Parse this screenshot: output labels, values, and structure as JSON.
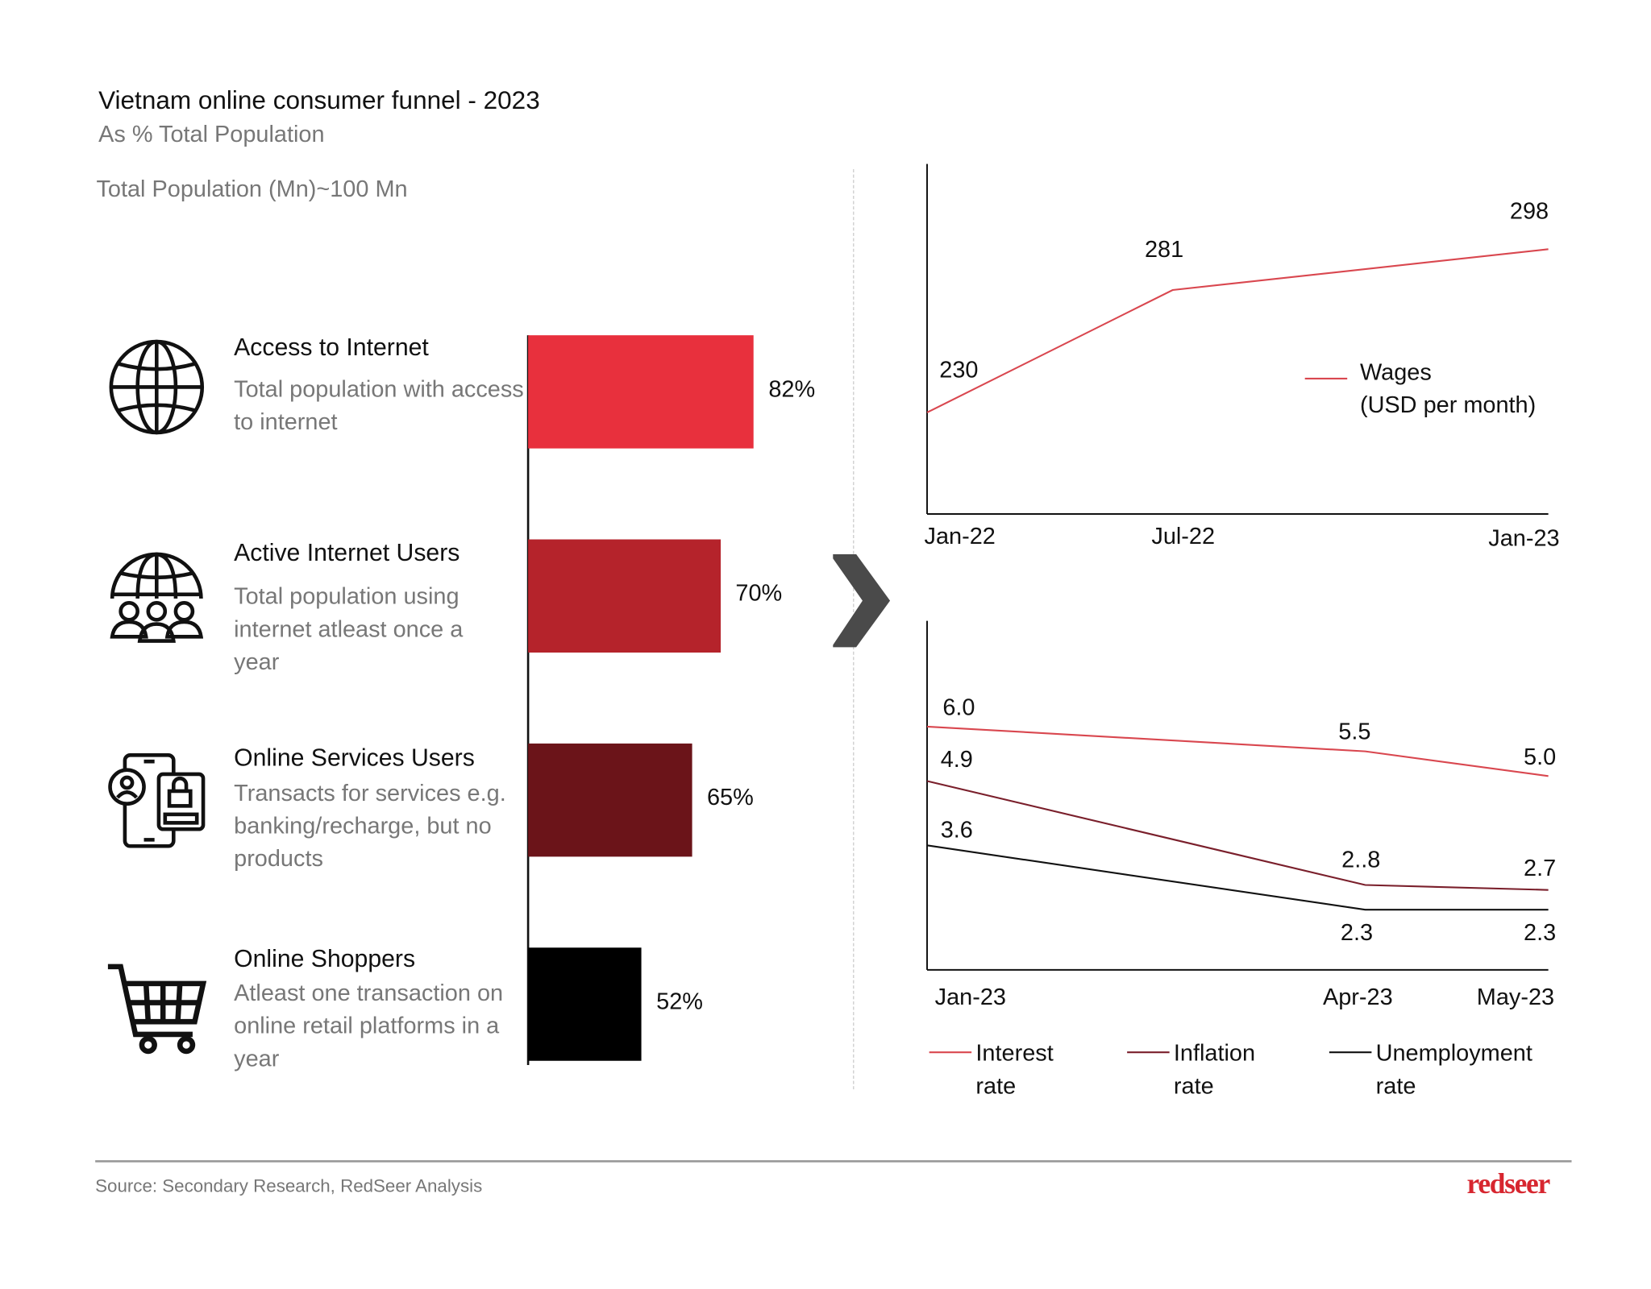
{
  "header": {
    "title": "Vietnam online consumer funnel - 2023",
    "subtitle": "As % Total Population",
    "population_note": "Total Population (Mn)~100 Mn"
  },
  "funnel": [
    {
      "title": "Access to Internet",
      "desc": "Total population with access to internet",
      "value": 82,
      "label": "82%",
      "color": "#e8303d",
      "icon": "globe-icon"
    },
    {
      "title": "Active Internet Users",
      "desc": "Total population using internet atleast once a year",
      "value": 70,
      "label": "70%",
      "color": "#b5232b",
      "icon": "globe-people-icon"
    },
    {
      "title": "Online Services Users",
      "desc": "Transacts for services e.g. banking/recharge, but no products",
      "value": 65,
      "label": "65%",
      "color": "#6b1419",
      "icon": "phone-lock-icon"
    },
    {
      "title": "Online Shoppers",
      "desc": "Atleast one transaction on online retail platforms in a year",
      "value": 52,
      "label": "52%",
      "color": "#000000",
      "icon": "shopping-cart-icon"
    }
  ],
  "chart_data": [
    {
      "type": "bar",
      "orientation": "horizontal",
      "categories": [
        "Access to Internet",
        "Active Internet Users",
        "Online Services Users",
        "Online Shoppers"
      ],
      "values": [
        82,
        70,
        65,
        52
      ],
      "unit": "%"
    },
    {
      "type": "line",
      "categories": [
        "Jan-22",
        "Jul-22",
        "Jan-23"
      ],
      "series": [
        {
          "name": "Wages (USD per month)",
          "line1": "Wages",
          "line2": "(USD per month)",
          "values": [
            230,
            281,
            298
          ],
          "labels": [
            "230",
            "281",
            "298"
          ],
          "color": "#d9474f"
        }
      ]
    },
    {
      "type": "line",
      "categories": [
        "Jan-23",
        "Apr-23",
        "May-23"
      ],
      "series": [
        {
          "name": "Interest rate",
          "line1": "Interest",
          "line2": "rate",
          "values": [
            6.0,
            5.5,
            5.0
          ],
          "labels": [
            "6.0",
            "5.5",
            "5.0"
          ],
          "color": "#d9474f"
        },
        {
          "name": "Inflation rate",
          "line1": "Inflation",
          "line2": "rate",
          "values": [
            4.9,
            2.8,
            2.7
          ],
          "labels": [
            "4.9",
            "2..8",
            "2.7"
          ],
          "color": "#7a1f2b"
        },
        {
          "name": "Unemployment rate",
          "line1": "Unemployment",
          "line2": "rate",
          "values": [
            3.6,
            2.3,
            2.3
          ],
          "labels": [
            "3.6",
            "2.3",
            "2.3"
          ],
          "color": "#111111"
        }
      ]
    }
  ],
  "footer": {
    "source": "Source: Secondary Research, RedSeer Analysis",
    "logo": "redseer"
  },
  "colors": {
    "divider": "#cccccc",
    "chevron": "#4a4a4a"
  }
}
